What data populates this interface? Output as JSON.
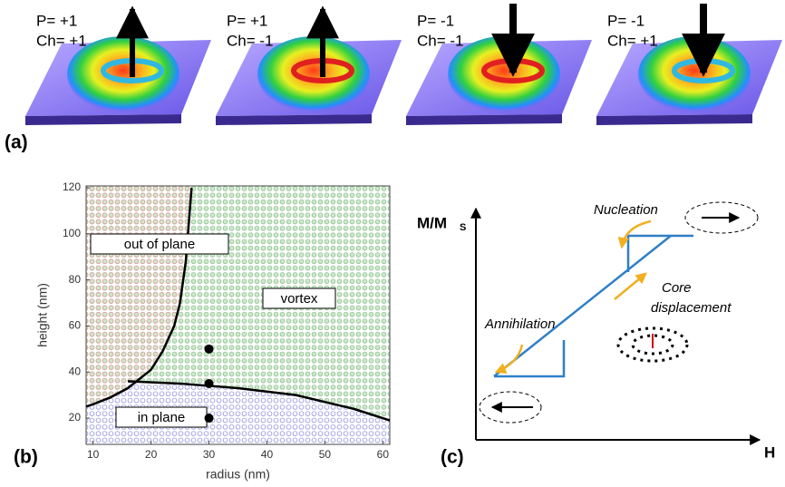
{
  "panel_a": {
    "label": "(a)",
    "states": [
      {
        "p": "P= +1",
        "ch": "Ch= +1"
      },
      {
        "p": "P= +1",
        "ch": "Ch= -1"
      },
      {
        "p": "P= -1",
        "ch": "Ch= -1"
      },
      {
        "p": "P= -1",
        "ch": "Ch= +1"
      }
    ]
  },
  "chart_data": {
    "type": "scatter",
    "panel_label": "(b)",
    "xlabel": "radius (nm)",
    "ylabel": "height (nm)",
    "xlim": [
      8.8,
      61.2
    ],
    "ylim": [
      8.6,
      120.8
    ],
    "xticks": [
      10,
      20,
      30,
      40,
      50,
      60
    ],
    "yticks": [
      20,
      40,
      60,
      80,
      100,
      120
    ],
    "annotations": [
      "out of plane",
      "vortex",
      "in plane"
    ],
    "series": [
      {
        "color": "#000000",
        "x": [
          30,
          30,
          30
        ],
        "values": [
          50,
          35,
          20
        ]
      }
    ],
    "boundaries": [
      {
        "x": [
          8.8,
          10,
          13,
          16,
          18,
          20,
          22,
          24,
          25,
          26,
          27
        ],
        "y": [
          25,
          26,
          29,
          33,
          37,
          41,
          49,
          60,
          70,
          88,
          120
        ]
      },
      {
        "x": [
          16,
          25,
          35,
          45,
          55,
          61.2
        ],
        "y": [
          36,
          35,
          33,
          30,
          24,
          19
        ]
      }
    ]
  },
  "panel_c": {
    "label": "(c)",
    "y_axis": "M/M",
    "y_axis_sub": "S",
    "x_axis": "H",
    "nucleation": "Nucleation",
    "annihilation": "Annihilation",
    "core": [
      "Core",
      "displacement"
    ]
  }
}
